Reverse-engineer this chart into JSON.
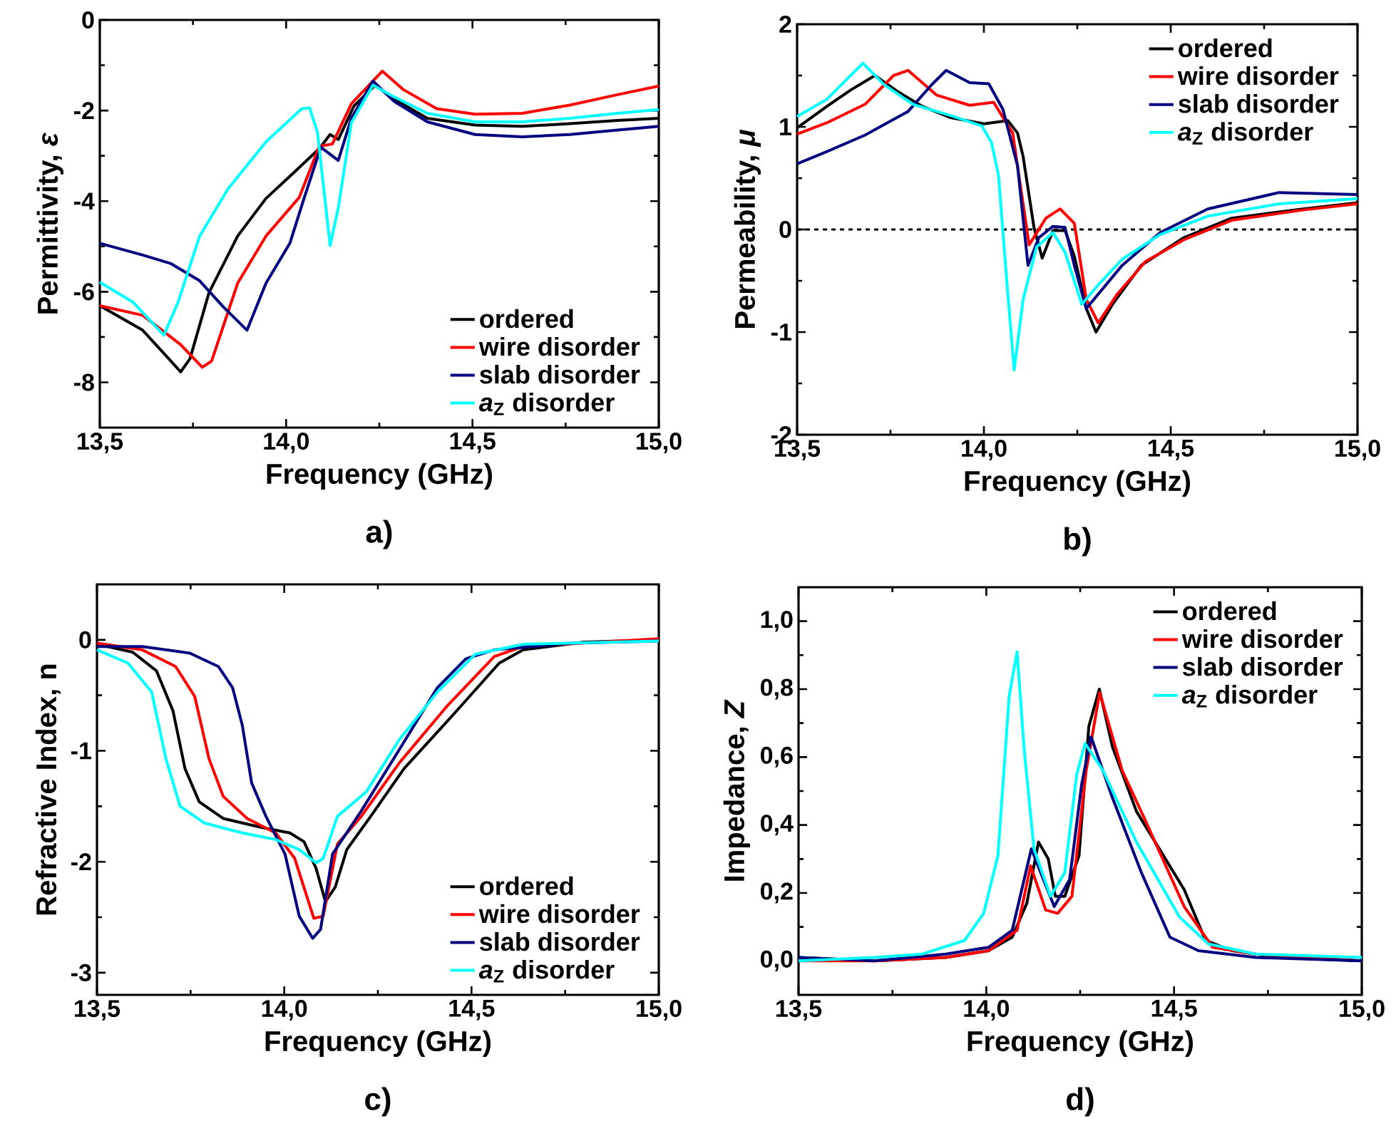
{
  "chart_data": [
    {
      "type": "line",
      "xlabel": "Frequency (GHz)",
      "ylabel": "Permittivity, *ε*",
      "annotations": [
        "a)"
      ],
      "legend": "bottom right",
      "xlim": [
        13.5,
        15.0
      ],
      "xticks": [
        {
          "value": 13.5,
          "label": "13,5"
        },
        {
          "value": 14.0,
          "label": "14,0"
        },
        {
          "value": 14.5,
          "label": "14,5"
        },
        {
          "value": 15.0,
          "label": "15,0"
        }
      ],
      "ylim": [
        -9,
        0
      ],
      "yticks": [
        -8,
        -6,
        -4,
        -2,
        0
      ],
      "series": [
        {
          "name": "ordered",
          "color": "#000000",
          "x": [
            13.5,
            13.615,
            13.685,
            13.717,
            13.742,
            13.793,
            13.87,
            13.946,
            14.022,
            14.089,
            14.118,
            14.14,
            14.182,
            14.239,
            14.29,
            14.379,
            14.507,
            14.634,
            14.761,
            14.889,
            15.0
          ],
          "values": [
            -6.31,
            -6.85,
            -7.48,
            -7.77,
            -7.48,
            -6.02,
            -4.77,
            -3.94,
            -3.36,
            -2.84,
            -2.53,
            -2.64,
            -1.9,
            -1.44,
            -1.75,
            -2.17,
            -2.32,
            -2.35,
            -2.29,
            -2.22,
            -2.17
          ]
        },
        {
          "name": "wire disorder",
          "color": "#ff0000",
          "x": [
            13.5,
            13.615,
            13.717,
            13.775,
            13.8,
            13.87,
            13.946,
            14.035,
            14.089,
            14.124,
            14.175,
            14.258,
            14.315,
            14.404,
            14.507,
            14.634,
            14.761,
            14.889,
            15.0
          ],
          "values": [
            -6.31,
            -6.52,
            -7.17,
            -7.67,
            -7.53,
            -5.81,
            -4.77,
            -3.92,
            -2.79,
            -2.74,
            -1.85,
            -1.13,
            -1.54,
            -1.96,
            -2.08,
            -2.06,
            -1.88,
            -1.65,
            -1.46
          ]
        },
        {
          "name": "slab disorder",
          "color": "#000080",
          "x": [
            13.5,
            13.615,
            13.691,
            13.768,
            13.831,
            13.895,
            13.946,
            14.01,
            14.048,
            14.093,
            14.14,
            14.175,
            14.233,
            14.29,
            14.379,
            14.507,
            14.634,
            14.761,
            14.889,
            15.0
          ],
          "values": [
            -4.93,
            -5.19,
            -5.38,
            -5.76,
            -6.33,
            -6.85,
            -5.81,
            -4.93,
            -3.94,
            -2.81,
            -3.1,
            -2.17,
            -1.35,
            -1.8,
            -2.25,
            -2.53,
            -2.58,
            -2.53,
            -2.43,
            -2.35
          ]
        },
        {
          "name": "*a*$_{Z}$ disorder",
          "color": "#00ffff",
          "x": [
            13.5,
            13.589,
            13.672,
            13.71,
            13.768,
            13.844,
            13.946,
            14.042,
            14.063,
            14.084,
            14.118,
            14.14,
            14.175,
            14.233,
            14.29,
            14.379,
            14.507,
            14.634,
            14.761,
            14.889,
            15.0
          ],
          "values": [
            -5.79,
            -6.23,
            -6.96,
            -6.23,
            -4.77,
            -3.73,
            -2.69,
            -1.96,
            -1.94,
            -2.48,
            -4.98,
            -4.15,
            -2.27,
            -1.44,
            -1.7,
            -2.06,
            -2.25,
            -2.25,
            -2.17,
            -2.06,
            -1.98
          ]
        }
      ]
    },
    {
      "type": "line",
      "xlabel": "Frequency (GHz)",
      "ylabel": "Permeability, *μ*",
      "annotations": [
        "b)"
      ],
      "legend": "top right",
      "xlim": [
        13.5,
        15.0
      ],
      "xticks": [
        {
          "value": 13.5,
          "label": "13,5"
        },
        {
          "value": 14.0,
          "label": "14,0"
        },
        {
          "value": 14.5,
          "label": "14,5"
        },
        {
          "value": 15.0,
          "label": "15,0"
        }
      ],
      "ylim": [
        -2,
        2
      ],
      "yticks": [
        -2,
        -1,
        0,
        1,
        2
      ],
      "ref_lines": [
        {
          "axis": "y",
          "value": 0,
          "color": "#000000",
          "line_style": "dashed"
        }
      ],
      "series": [
        {
          "name": "ordered",
          "color": "#000000",
          "x": [
            13.5,
            13.58,
            13.644,
            13.708,
            13.771,
            13.835,
            13.911,
            14.0,
            14.064,
            14.09,
            14.105,
            14.134,
            14.156,
            14.185,
            14.217,
            14.242,
            14.274,
            14.3,
            14.344,
            14.421,
            14.535,
            14.663,
            14.854,
            15.0
          ],
          "values": [
            0.99,
            1.2,
            1.36,
            1.5,
            1.34,
            1.2,
            1.09,
            1.03,
            1.06,
            0.94,
            0.71,
            0.02,
            -0.28,
            -0.01,
            -0.01,
            -0.26,
            -0.77,
            -1.0,
            -0.73,
            -0.35,
            -0.08,
            0.11,
            0.2,
            0.26
          ]
        },
        {
          "name": "wire disorder",
          "color": "#ff0000",
          "x": [
            13.5,
            13.58,
            13.682,
            13.758,
            13.797,
            13.873,
            13.962,
            14.026,
            14.077,
            14.121,
            14.166,
            14.204,
            14.242,
            14.274,
            14.306,
            14.357,
            14.433,
            14.535,
            14.663,
            14.854,
            15.0
          ],
          "values": [
            0.93,
            1.04,
            1.22,
            1.5,
            1.55,
            1.31,
            1.21,
            1.24,
            0.94,
            -0.15,
            0.11,
            0.2,
            0.06,
            -0.68,
            -0.91,
            -0.63,
            -0.31,
            -0.1,
            0.09,
            0.19,
            0.25
          ]
        },
        {
          "name": "slab disorder",
          "color": "#000080",
          "x": [
            13.5,
            13.58,
            13.682,
            13.797,
            13.86,
            13.899,
            13.962,
            14.013,
            14.051,
            14.09,
            14.118,
            14.147,
            14.185,
            14.217,
            14.242,
            14.274,
            14.306,
            14.37,
            14.472,
            14.599,
            14.79,
            15.0
          ],
          "values": [
            0.64,
            0.76,
            0.92,
            1.15,
            1.41,
            1.55,
            1.43,
            1.42,
            1.17,
            0.62,
            -0.35,
            -0.08,
            0.03,
            0.02,
            -0.35,
            -0.77,
            -0.63,
            -0.35,
            -0.03,
            0.2,
            0.36,
            0.34
          ]
        },
        {
          "name": "*a*$_{Z}$ disorder",
          "color": "#00ffff",
          "x": [
            13.5,
            13.58,
            13.676,
            13.733,
            13.81,
            13.911,
            13.994,
            14.02,
            14.039,
            14.062,
            14.081,
            14.105,
            14.141,
            14.185,
            14.217,
            14.262,
            14.306,
            14.37,
            14.472,
            14.599,
            14.79,
            15.0
          ],
          "values": [
            1.1,
            1.27,
            1.62,
            1.41,
            1.22,
            1.11,
            1.01,
            0.85,
            0.53,
            -0.54,
            -1.37,
            -0.68,
            -0.17,
            -0.03,
            -0.22,
            -0.73,
            -0.54,
            -0.29,
            -0.05,
            0.13,
            0.25,
            0.3
          ]
        }
      ]
    },
    {
      "type": "line",
      "xlabel": "Frequency (GHz)",
      "ylabel": "Refractive Index, n",
      "annotations": [
        "c)"
      ],
      "legend": "bottom right",
      "xlim": [
        13.5,
        15.0
      ],
      "xticks": [
        {
          "value": 13.5,
          "label": "13,5"
        },
        {
          "value": 14.0,
          "label": "14,0"
        },
        {
          "value": 14.5,
          "label": "14,5"
        },
        {
          "value": 15.0,
          "label": "15,0"
        }
      ],
      "ylim": [
        -3.2,
        0.5
      ],
      "yticks": [
        -3,
        -2,
        -1,
        0
      ],
      "series": [
        {
          "name": "ordered",
          "color": "#000000",
          "x": [
            13.5,
            13.595,
            13.659,
            13.703,
            13.735,
            13.773,
            13.837,
            13.939,
            14.015,
            14.053,
            14.085,
            14.11,
            14.136,
            14.167,
            14.231,
            14.32,
            14.447,
            14.574,
            14.638,
            14.8,
            15.0
          ],
          "values": [
            -0.04,
            -0.11,
            -0.28,
            -0.64,
            -1.16,
            -1.46,
            -1.61,
            -1.69,
            -1.74,
            -1.82,
            -2.06,
            -2.36,
            -2.23,
            -1.89,
            -1.59,
            -1.16,
            -0.69,
            -0.21,
            -0.09,
            -0.02,
            0
          ]
        },
        {
          "name": "wire disorder",
          "color": "#ff0000",
          "x": [
            13.5,
            13.621,
            13.71,
            13.761,
            13.799,
            13.837,
            13.901,
            13.977,
            14.028,
            14.079,
            14.104,
            14.142,
            14.206,
            14.307,
            14.434,
            14.561,
            14.638,
            15.0
          ],
          "values": [
            -0.03,
            -0.09,
            -0.24,
            -0.51,
            -1.07,
            -1.41,
            -1.61,
            -1.74,
            -1.97,
            -2.51,
            -2.49,
            -1.84,
            -1.59,
            -1.11,
            -0.6,
            -0.15,
            -0.06,
            0.01
          ]
        },
        {
          "name": "slab disorder",
          "color": "#000080",
          "x": [
            13.5,
            13.621,
            13.748,
            13.824,
            13.862,
            13.888,
            13.913,
            13.951,
            14.002,
            14.04,
            14.076,
            14.097,
            14.129,
            14.206,
            14.307,
            14.409,
            14.485,
            14.561,
            14.765,
            15.0
          ],
          "values": [
            -0.06,
            -0.06,
            -0.12,
            -0.24,
            -0.43,
            -0.77,
            -1.29,
            -1.59,
            -1.93,
            -2.49,
            -2.69,
            -2.61,
            -1.93,
            -1.54,
            -0.99,
            -0.43,
            -0.17,
            -0.09,
            -0.03,
            -0.01
          ]
        },
        {
          "name": "*a*$_{Z}$ disorder",
          "color": "#00ffff",
          "x": [
            13.5,
            13.583,
            13.646,
            13.684,
            13.722,
            13.786,
            13.888,
            13.977,
            14.04,
            14.085,
            14.104,
            14.142,
            14.219,
            14.307,
            14.409,
            14.51,
            14.638,
            15.0
          ],
          "values": [
            -0.09,
            -0.21,
            -0.47,
            -1.07,
            -1.5,
            -1.65,
            -1.74,
            -1.8,
            -1.89,
            -2.01,
            -1.97,
            -1.59,
            -1.37,
            -0.9,
            -0.47,
            -0.13,
            -0.04,
            -0.01
          ]
        }
      ]
    },
    {
      "type": "line",
      "xlabel": "Frequency (GHz)",
      "ylabel": "Impedance, *Z*",
      "annotations": [
        "d)"
      ],
      "legend": "top right",
      "xlim": [
        13.5,
        15.0
      ],
      "xticks": [
        {
          "value": 13.5,
          "label": "13,5"
        },
        {
          "value": 14.0,
          "label": "14,0"
        },
        {
          "value": 14.5,
          "label": "14,5"
        },
        {
          "value": 15.0,
          "label": "15,0"
        }
      ],
      "ylim": [
        -0.1,
        1.1
      ],
      "yticks": [
        {
          "value": 0,
          "label": "0,0"
        },
        {
          "value": 0.2,
          "label": "0,2"
        },
        {
          "value": 0.4,
          "label": "0,4"
        },
        {
          "value": 0.6,
          "label": "0,6"
        },
        {
          "value": 0.8,
          "label": "0,8"
        },
        {
          "value": 1.0,
          "label": "1,0"
        }
      ],
      "series": [
        {
          "name": "ordered",
          "color": "#000000",
          "x": [
            13.5,
            13.701,
            13.892,
            14.006,
            14.069,
            14.108,
            14.139,
            14.165,
            14.184,
            14.209,
            14.247,
            14.273,
            14.301,
            14.336,
            14.4,
            14.527,
            14.584,
            14.655,
            14.782,
            15.0
          ],
          "values": [
            0.01,
            0.0,
            0.01,
            0.03,
            0.07,
            0.17,
            0.35,
            0.3,
            0.19,
            0.19,
            0.31,
            0.69,
            0.8,
            0.63,
            0.44,
            0.21,
            0.06,
            0.03,
            0.01,
            0.0
          ]
        },
        {
          "name": "wire disorder",
          "color": "#ff0000",
          "x": [
            13.5,
            13.701,
            13.892,
            14.006,
            14.082,
            14.118,
            14.158,
            14.19,
            14.228,
            14.266,
            14.302,
            14.362,
            14.425,
            14.527,
            14.603,
            14.718,
            15.0
          ],
          "values": [
            0.0,
            0.0,
            0.01,
            0.03,
            0.09,
            0.28,
            0.15,
            0.14,
            0.19,
            0.56,
            0.79,
            0.56,
            0.41,
            0.16,
            0.04,
            0.02,
            0.0
          ]
        },
        {
          "name": "slab disorder",
          "color": "#000080",
          "x": [
            13.5,
            13.701,
            13.892,
            14.006,
            14.069,
            14.12,
            14.152,
            14.181,
            14.222,
            14.254,
            14.279,
            14.336,
            14.413,
            14.489,
            14.565,
            14.718,
            15.0
          ],
          "values": [
            0.01,
            0.0,
            0.02,
            0.04,
            0.09,
            0.33,
            0.24,
            0.16,
            0.24,
            0.52,
            0.66,
            0.48,
            0.26,
            0.07,
            0.03,
            0.01,
            0.0
          ]
        },
        {
          "name": "*a*$_{Z}$ disorder",
          "color": "#00ffff",
          "x": [
            13.5,
            13.701,
            13.828,
            13.942,
            13.993,
            14.031,
            14.061,
            14.082,
            14.101,
            14.127,
            14.171,
            14.209,
            14.241,
            14.263,
            14.311,
            14.4,
            14.514,
            14.591,
            14.718,
            15.0
          ],
          "values": [
            0.0,
            0.01,
            0.02,
            0.06,
            0.14,
            0.31,
            0.78,
            0.91,
            0.62,
            0.33,
            0.19,
            0.26,
            0.55,
            0.64,
            0.56,
            0.35,
            0.13,
            0.05,
            0.02,
            0.01
          ]
        }
      ]
    }
  ]
}
